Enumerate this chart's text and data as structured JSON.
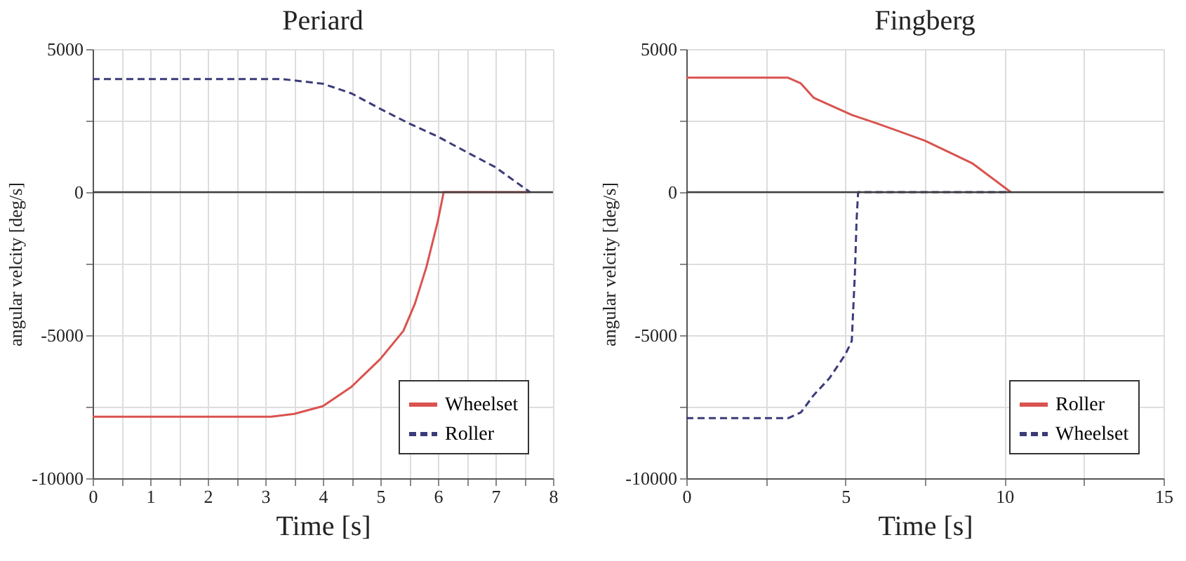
{
  "chart_data": [
    {
      "type": "line",
      "title": "Periard",
      "xlabel": "Time [s]",
      "ylabel": "angular velcity [deg/s]",
      "xlim": [
        0,
        8
      ],
      "ylim": [
        -10000,
        5000
      ],
      "xticks": [
        0,
        {
          "value": 0.5,
          "label": null
        },
        1,
        {
          "value": 1.5,
          "label": null
        },
        2,
        {
          "value": 2.5,
          "label": null
        },
        3,
        {
          "value": 3.5,
          "label": null
        },
        4,
        {
          "value": 4.5,
          "label": null
        },
        5,
        {
          "value": 5.5,
          "label": null
        },
        6,
        {
          "value": 6.5,
          "label": null
        },
        7,
        {
          "value": 7.5,
          "label": null
        },
        8
      ],
      "yticks": [
        -10000,
        {
          "value": -7500,
          "label": null
        },
        -5000,
        {
          "value": -2500,
          "label": null
        },
        0,
        {
          "value": 2500,
          "label": null
        },
        5000
      ],
      "grid": true,
      "legend": "bottom right",
      "ref_lines": [
        {
          "axis": "y",
          "value": 0,
          "color": "#404040"
        }
      ],
      "series": [
        {
          "name": "Wheelset",
          "color": "#d9534f",
          "line_style": "solid",
          "x": [
            0,
            3.1,
            3.5,
            4,
            4.5,
            5,
            5.4,
            5.6,
            5.8,
            6,
            6.1,
            7.6
          ],
          "values": [
            -7850,
            -7850,
            -7750,
            -7480,
            -6800,
            -5830,
            -4850,
            -3900,
            -2620,
            -1000,
            0,
            0
          ]
        },
        {
          "name": "Roller",
          "color": "#3b3b7a",
          "line_style": "dashed",
          "x": [
            0,
            3.3,
            4,
            4.5,
            5,
            5.5,
            6,
            6.5,
            7,
            7.6
          ],
          "values": [
            3950,
            3950,
            3790,
            3450,
            2910,
            2400,
            1940,
            1400,
            870,
            0
          ]
        }
      ]
    },
    {
      "type": "line",
      "title": "Fingberg",
      "xlabel": "Time [s]",
      "ylabel": "angular velcity [deg/s]",
      "xlim": [
        0,
        15
      ],
      "ylim": [
        -10000,
        5000
      ],
      "xticks": [
        0,
        {
          "value": 2.5,
          "label": null
        },
        5,
        {
          "value": 7.5,
          "label": null
        },
        10,
        {
          "value": 12.5,
          "label": null
        },
        15
      ],
      "yticks": [
        -10000,
        {
          "value": -7500,
          "label": null
        },
        -5000,
        {
          "value": -2500,
          "label": null
        },
        0,
        {
          "value": 2500,
          "label": null
        },
        5000
      ],
      "grid": true,
      "legend": "bottom right",
      "ref_lines": [
        {
          "axis": "y",
          "value": 0,
          "color": "#404040"
        }
      ],
      "series": [
        {
          "name": "Roller",
          "color": "#d9534f",
          "line_style": "solid",
          "x": [
            0,
            3.2,
            3.6,
            4,
            4.6,
            5.2,
            6,
            7.5,
            9,
            10.2
          ],
          "values": [
            4000,
            4000,
            3800,
            3300,
            3000,
            2700,
            2400,
            1800,
            1000,
            0
          ]
        },
        {
          "name": "Wheelset",
          "color": "#3b3b7a",
          "line_style": "dashed",
          "x": [
            0,
            3.2,
            3.6,
            4,
            4.5,
            5,
            5.2,
            5.3,
            5.35,
            5.4,
            10.2
          ],
          "values": [
            -7900,
            -7900,
            -7700,
            -7100,
            -6500,
            -5670,
            -5200,
            -2800,
            -1000,
            0,
            0
          ]
        }
      ]
    }
  ]
}
